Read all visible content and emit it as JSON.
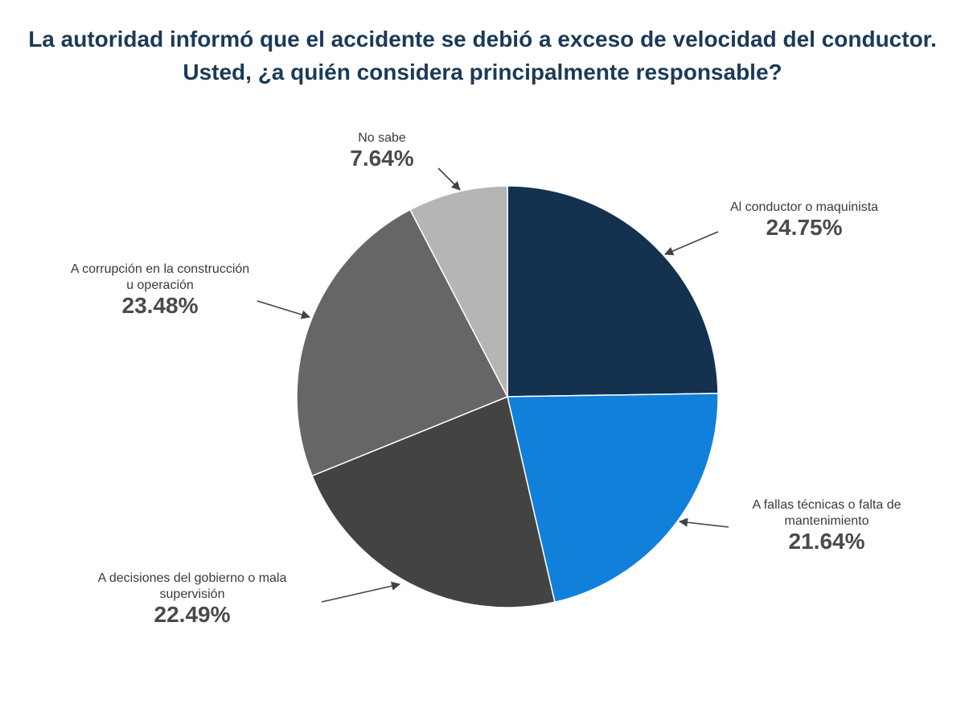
{
  "chart_data": {
    "type": "pie",
    "title_lines": [
      "La autoridad informó que el accidente se debió a exceso de velocidad del conductor.",
      "Usted, ¿a quién considera principalmente responsable?"
    ],
    "slices": [
      {
        "label_lines": [
          "Al conductor o maquinista"
        ],
        "value": 24.75,
        "value_text": "24.75%",
        "color": "#14324f"
      },
      {
        "label_lines": [
          "A fallas técnicas o falta de",
          "mantenimiento"
        ],
        "value": 21.64,
        "value_text": "21.64%",
        "color": "#1080db"
      },
      {
        "label_lines": [
          "A decisiones del gobierno o mala",
          "supervisión"
        ],
        "value": 22.49,
        "value_text": "22.49%",
        "color": "#434343"
      },
      {
        "label_lines": [
          "A corrupción en la construcción",
          "u operación"
        ],
        "value": 23.48,
        "value_text": "23.48%",
        "color": "#666666"
      },
      {
        "label_lines": [
          "No sabe"
        ],
        "value": 7.64,
        "value_text": "7.64%",
        "color": "#b5b5b5"
      }
    ]
  }
}
